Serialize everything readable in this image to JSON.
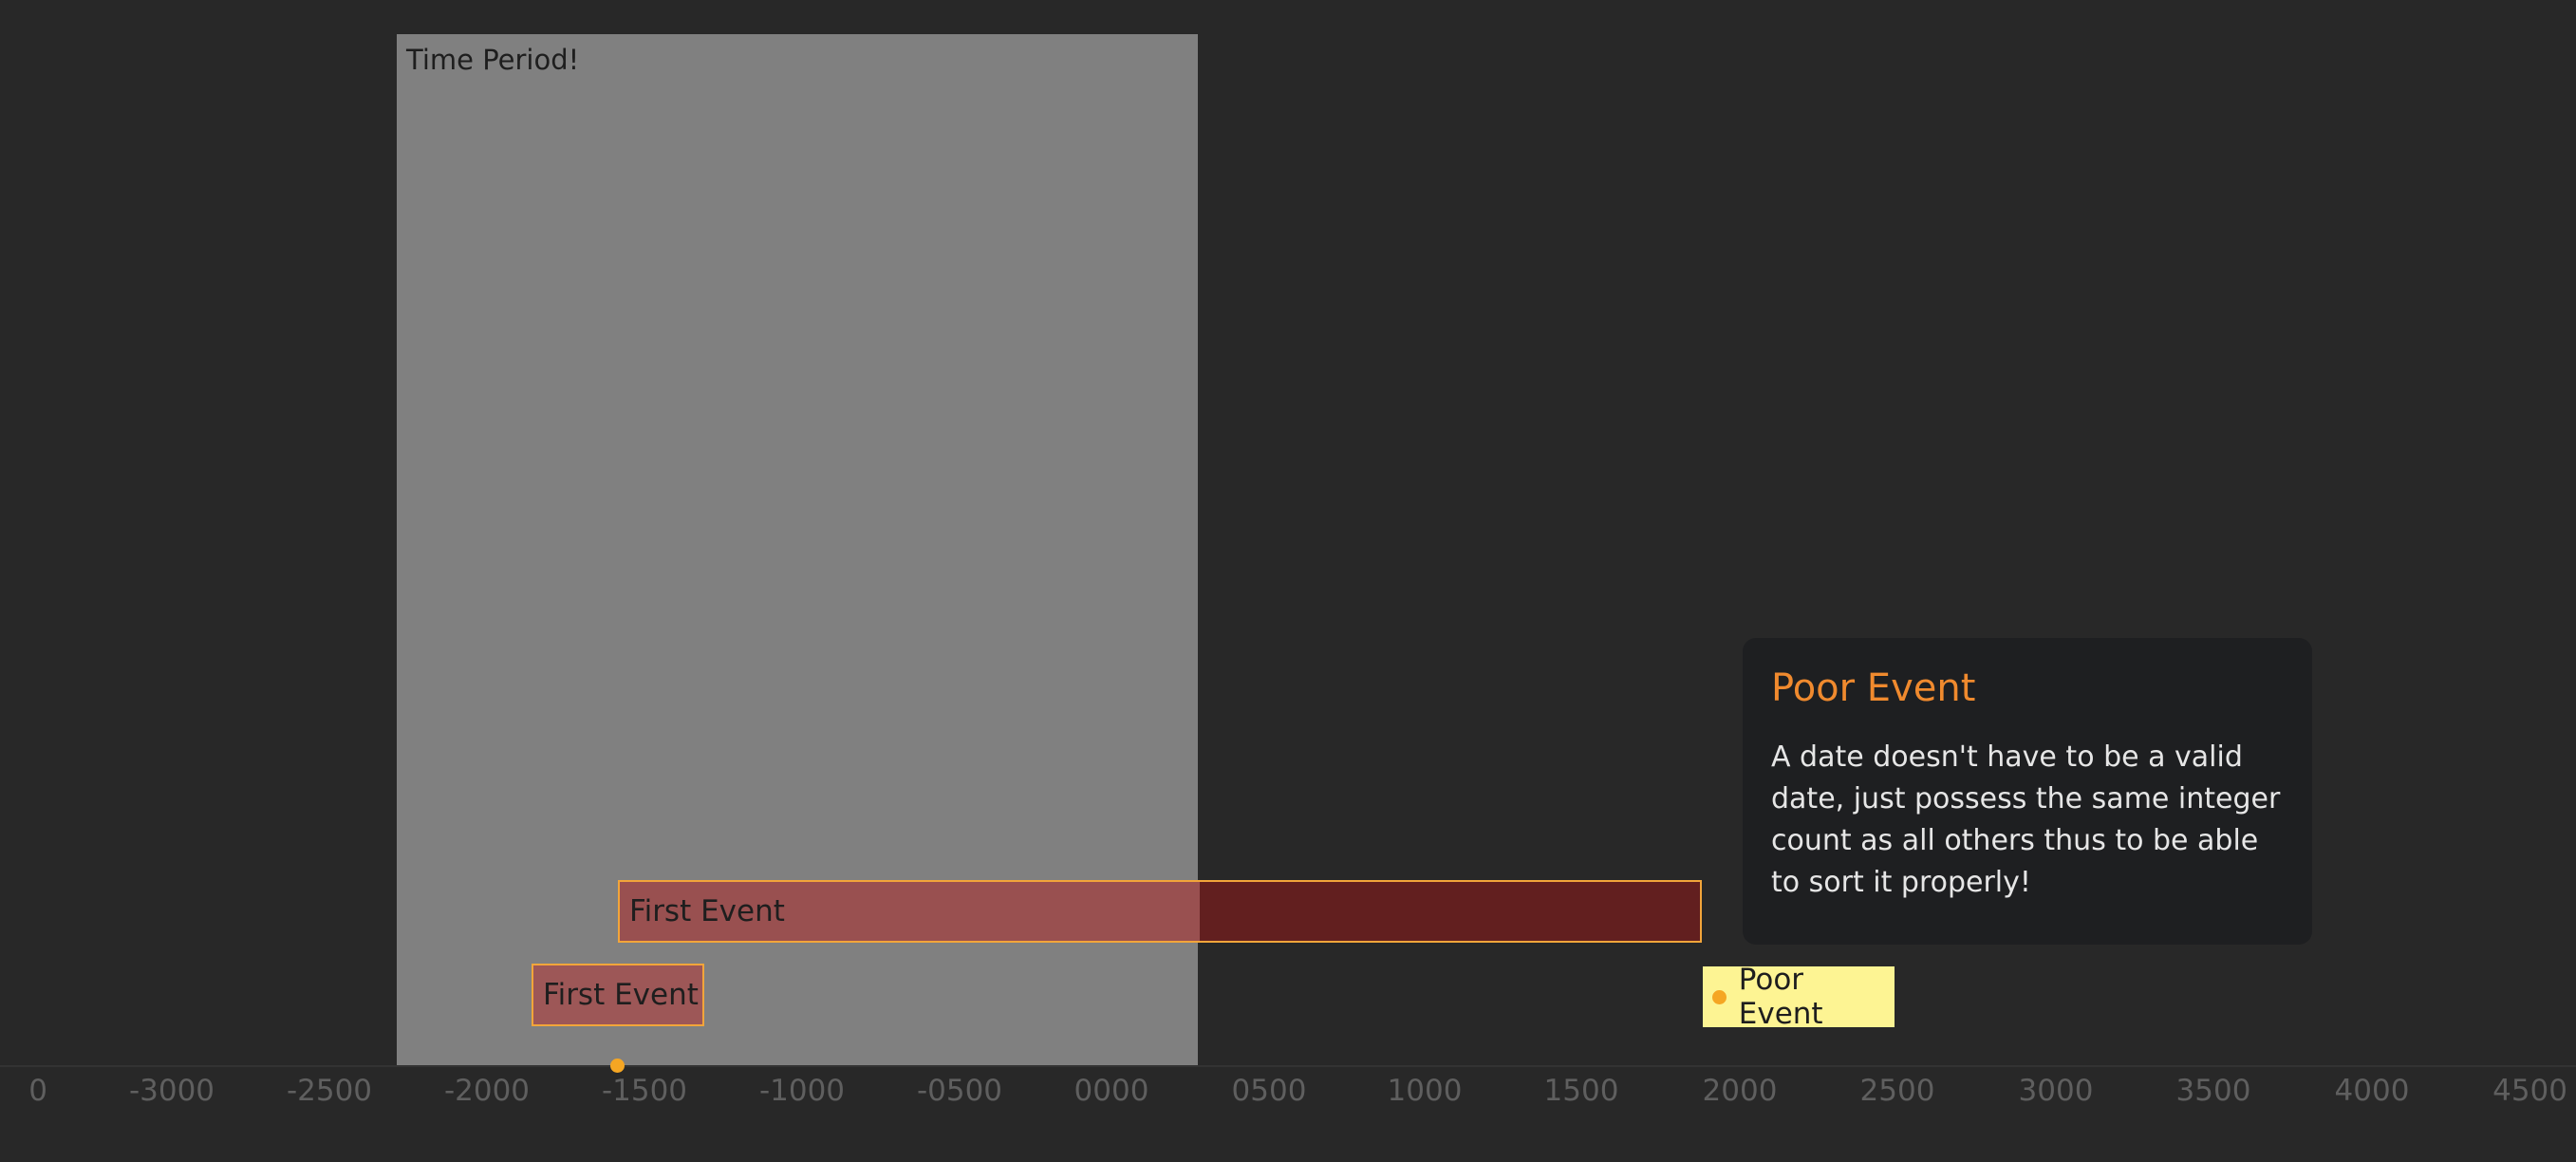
{
  "timeline": {
    "period": {
      "label": "Time Period!"
    },
    "events": [
      {
        "label": "First Event"
      },
      {
        "label": "First Event"
      },
      {
        "label": "Poor Event"
      }
    ],
    "tooltip": {
      "title": "Poor Event",
      "body": "A date doesn't have to be a valid date, just possess the same integer count as all others thus to be able to sort it properly!"
    },
    "axis": {
      "ticks": [
        "0",
        "-3000",
        "-2500",
        "-2000",
        "-1500",
        "-1000",
        "-0500",
        "0000",
        "0500",
        "1000",
        "1500",
        "2000",
        "2500",
        "3000",
        "3500",
        "4000",
        "4500"
      ]
    },
    "colors": {
      "background": "#282828",
      "period": "#808080",
      "event_border": "#f2a53a",
      "event_fill": "#621f1f",
      "point_event_fill": "#fdf493",
      "tooltip_title": "#f08a2e",
      "marker": "#f5a623"
    }
  }
}
